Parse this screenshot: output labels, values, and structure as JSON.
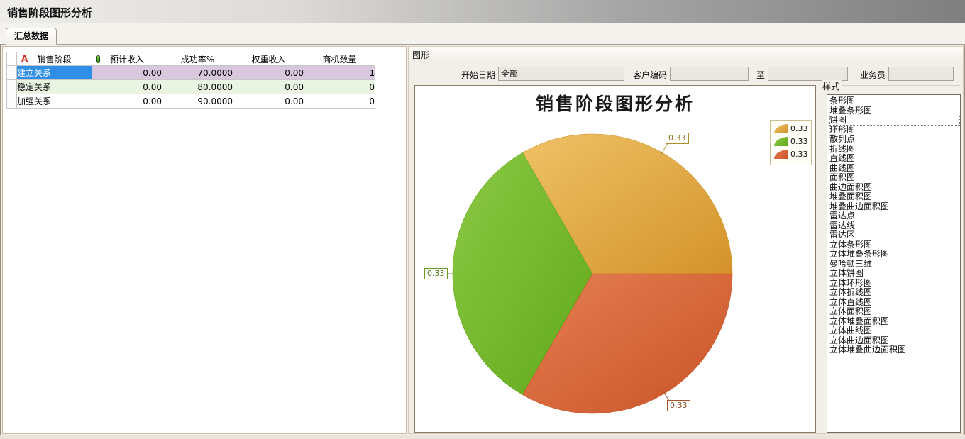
{
  "window": {
    "title": "销售阶段图形分析"
  },
  "tabs": [
    {
      "label": "汇总数据",
      "active": true
    }
  ],
  "table": {
    "columns": [
      "销售阶段",
      "预计收入",
      "成功率%",
      "权重收入",
      "商机数量"
    ],
    "header_icons": {
      "stage_icon_text": "A",
      "revenue_icon": "field-capsule-icon"
    },
    "rows": [
      {
        "stage": "建立关系",
        "expected": "0.00",
        "success": "70.0000",
        "weighted": "0.00",
        "count": "1",
        "selected": true
      },
      {
        "stage": "稳定关系",
        "expected": "0.00",
        "success": "80.0000",
        "weighted": "0.00",
        "count": "0",
        "selected": false
      },
      {
        "stage": "加强关系",
        "expected": "0.00",
        "success": "90.0000",
        "weighted": "0.00",
        "count": "0",
        "selected": false
      }
    ]
  },
  "graph_panel": {
    "group_label": "图形",
    "form": {
      "start_date_label": "开始日期",
      "start_date_value": "全部",
      "customer_code_label": "客户编码",
      "customer_code_value": "",
      "to_label": "至",
      "to_value": "",
      "salesman_label": "业务员",
      "salesman_value": ""
    },
    "style_panel": {
      "label": "样式",
      "selected_item": "饼图",
      "items": [
        "条形图",
        "堆叠条形图",
        "饼图",
        "环形图",
        "散列点",
        "折线图",
        "直线图",
        "曲线图",
        "面积图",
        "曲边面积图",
        "堆叠面积图",
        "堆叠曲边面积图",
        "雷达点",
        "雷达线",
        "雷达区",
        "立体条形图",
        "立体堆叠条形图",
        "曼哈顿三维",
        "立体饼图",
        "立体环形图",
        "立体折线图",
        "立体直线图",
        "立体面积图",
        "立体堆叠面积图",
        "立体曲线图",
        "立体曲边面积图",
        "立体堆叠曲边面积图"
      ]
    }
  },
  "chart_data": {
    "type": "pie",
    "title": "销售阶段图形分析",
    "values": [
      0.33,
      0.33,
      0.33
    ],
    "slice_labels": [
      "0.33",
      "0.33",
      "0.33"
    ],
    "legend_labels": [
      "0.33",
      "0.33",
      "0.33"
    ],
    "colors_light": [
      "#eec266",
      "#8cc944",
      "#e57f52"
    ],
    "colors_dark": [
      "#d4922a",
      "#61a81b",
      "#c95327"
    ],
    "callout_border_colors": [
      "#ad8f2b",
      "#6a9a20",
      "#a8542b"
    ],
    "callout_text_colors": [
      "#8d741c",
      "#507a12",
      "#8f4a1e"
    ],
    "legend_position": "top-right",
    "start_angle_deg": 0,
    "direction": "counterclockwise"
  }
}
